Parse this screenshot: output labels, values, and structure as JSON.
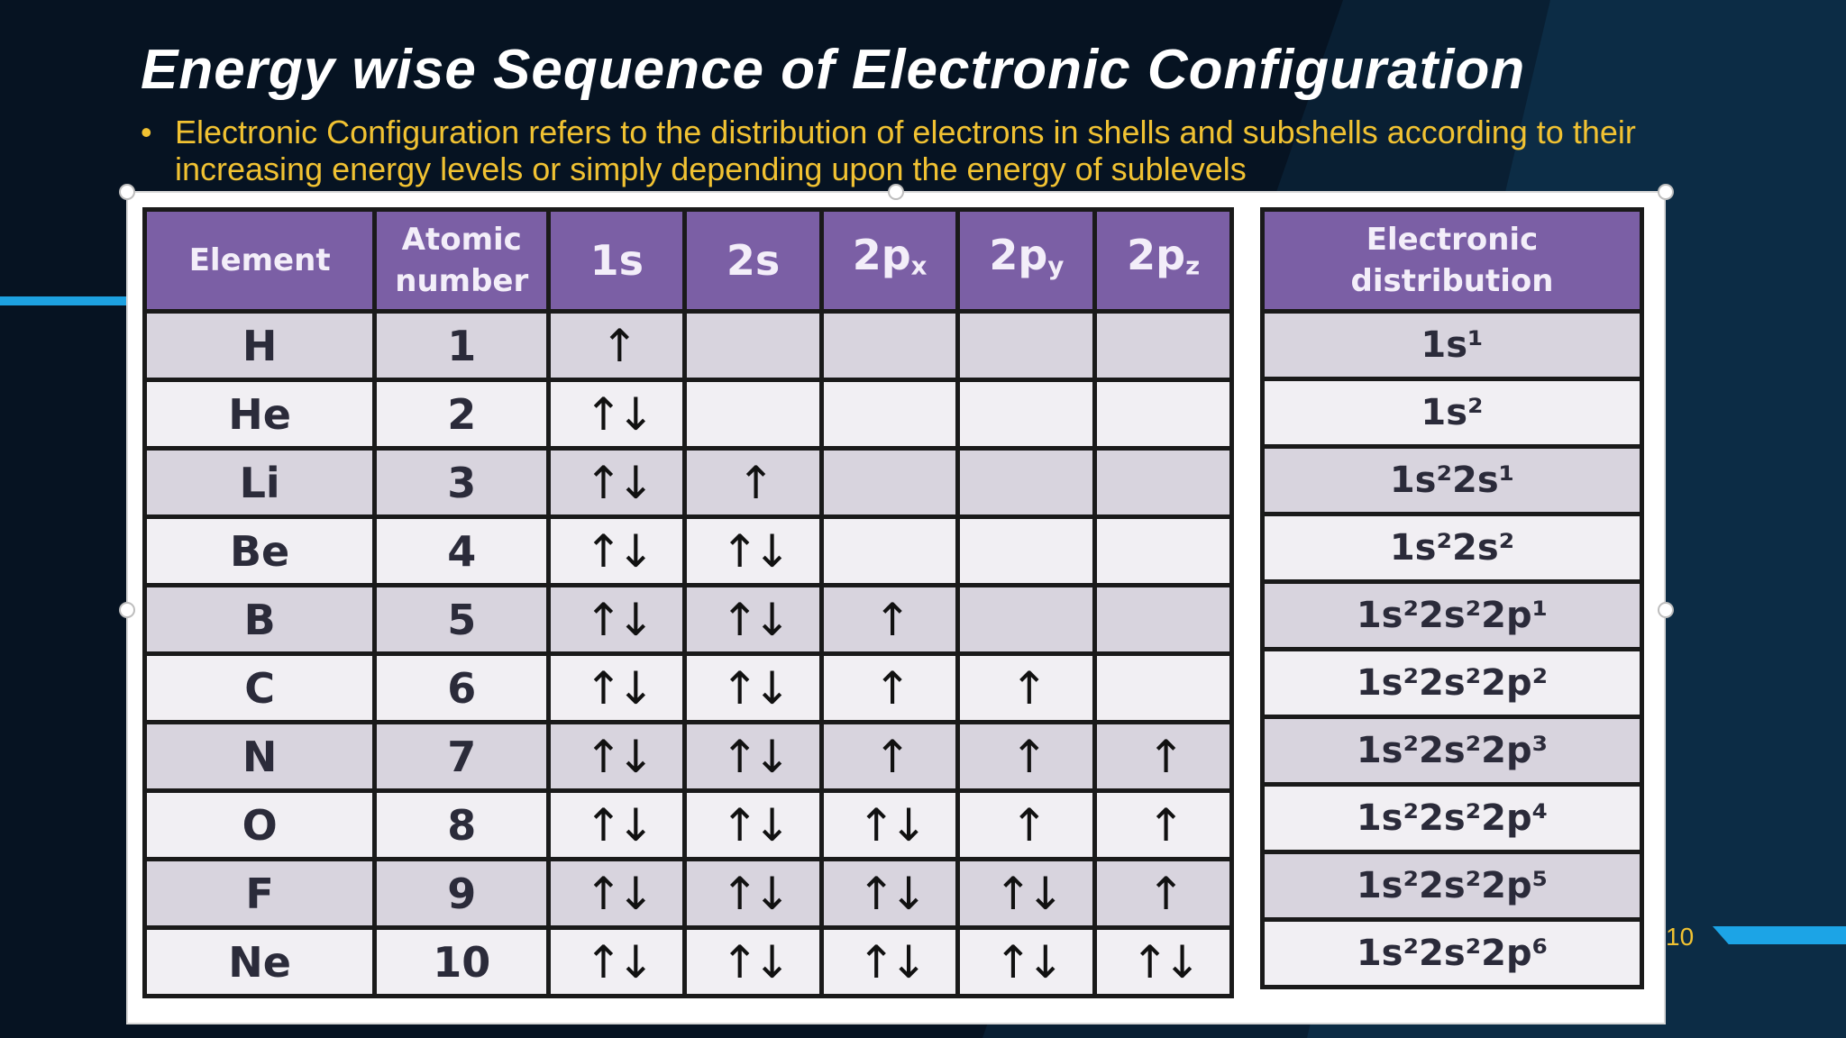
{
  "slide": {
    "title": "Energy wise Sequence of Electronic Configuration",
    "bullet_marker": "•",
    "bullet": "Electronic Configuration refers to the distribution of electrons in shells and subshells according to their increasing energy levels or simply depending upon the energy of sublevels",
    "page_number": "10"
  },
  "table": {
    "headers": {
      "element": "Element",
      "atomic_number": "Atomic number",
      "s1": "1s",
      "s2": "2s",
      "px": "2p",
      "px_sub": "x",
      "py": "2p",
      "py_sub": "y",
      "pz": "2p",
      "pz_sub": "z",
      "distribution": "Electronic distribution"
    },
    "rows": [
      {
        "element": "H",
        "number": "1",
        "s1": "↑",
        "s2": "",
        "px": "",
        "py": "",
        "pz": "",
        "dist": "1s¹"
      },
      {
        "element": "He",
        "number": "2",
        "s1": "↑↓",
        "s2": "",
        "px": "",
        "py": "",
        "pz": "",
        "dist": "1s²"
      },
      {
        "element": "Li",
        "number": "3",
        "s1": "↑↓",
        "s2": "↑",
        "px": "",
        "py": "",
        "pz": "",
        "dist": "1s²2s¹"
      },
      {
        "element": "Be",
        "number": "4",
        "s1": "↑↓",
        "s2": "↑↓",
        "px": "",
        "py": "",
        "pz": "",
        "dist": "1s²2s²"
      },
      {
        "element": "B",
        "number": "5",
        "s1": "↑↓",
        "s2": "↑↓",
        "px": "↑",
        "py": "",
        "pz": "",
        "dist": "1s²2s²2p¹"
      },
      {
        "element": "C",
        "number": "6",
        "s1": "↑↓",
        "s2": "↑↓",
        "px": "↑",
        "py": "↑",
        "pz": "",
        "dist": "1s²2s²2p²"
      },
      {
        "element": "N",
        "number": "7",
        "s1": "↑↓",
        "s2": "↑↓",
        "px": "↑",
        "py": "↑",
        "pz": "↑",
        "dist": "1s²2s²2p³"
      },
      {
        "element": "O",
        "number": "8",
        "s1": "↑↓",
        "s2": "↑↓",
        "px": "↑↓",
        "py": "↑",
        "pz": "↑",
        "dist": "1s²2s²2p⁴"
      },
      {
        "element": "F",
        "number": "9",
        "s1": "↑↓",
        "s2": "↑↓",
        "px": "↑↓",
        "py": "↑↓",
        "pz": "↑",
        "dist": "1s²2s²2p⁵"
      },
      {
        "element": "Ne",
        "number": "10",
        "s1": "↑↓",
        "s2": "↑↓",
        "px": "↑↓",
        "py": "↑↓",
        "pz": "↑↓",
        "dist": "1s²2s²2p⁶"
      }
    ]
  },
  "colors": {
    "background": "#061322",
    "title": "#ffffff",
    "bullet_text": "#f1c232",
    "header_fill": "#7b5fa5",
    "accent": "#1da1e0"
  }
}
